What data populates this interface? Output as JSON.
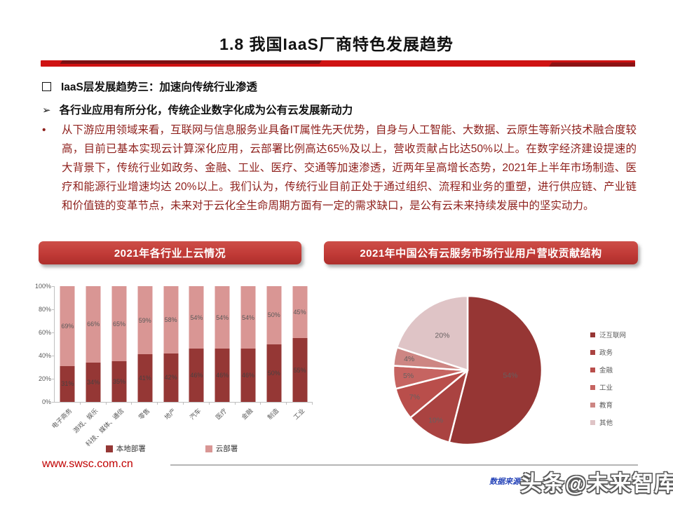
{
  "page": {
    "title": "1.8 我国IaaS厂商特色发展趋势",
    "section_heading": "IaaS层发展趋势三：加速向传统行业渗透",
    "sub_heading": "各行业应用有所分化，传统企业数字化成为公有云发展新动力",
    "bullet_glyph": "•",
    "arrow_glyph": "➢",
    "paragraph": "从下游应用领域来看，互联网与信息服务业具备IT属性先天优势，自身与人工智能、大数据、云原生等新兴技术融合度较高，目前已基本实现云计算深化应用，云部署比例高达65%及以上，营收贡献占比达50%以上。在数字经济建设提速的大背景下，传统行业如政务、金融、工业、医疗、交通等加速渗透，近两年呈高增长态势，2021年上半年市场制造、医疗和能源行业增速均达 20%以上。我们认为，传统行业目前正处于通过组织、流程和业务的重塑，进行供应链、产业链和价值链的变革节点，未来对于云化全生命周期方面有一定的需求缺口，是公有云未来持续发展中的坚实动力。"
  },
  "accent_colors": {
    "divider_red": "#cf1212",
    "banner_red": "#c13a36",
    "dark_series": "#953735",
    "light_series": "#D99694"
  },
  "chart_data": [
    {
      "type": "bar",
      "stacked": true,
      "percent": true,
      "title": "2021年各行业上云情况",
      "categories": [
        "电子商务",
        "游戏、娱乐",
        "科技、媒体、通信",
        "零售",
        "地产",
        "汽车",
        "医疗",
        "金融",
        "制造",
        "工业"
      ],
      "series": [
        {
          "name": "本地部署",
          "color": "#953735",
          "values": [
            31,
            34,
            35,
            41,
            42,
            46,
            46,
            46,
            50,
            55
          ]
        },
        {
          "name": "云部署",
          "color": "#D99694",
          "values": [
            69,
            66,
            65,
            59,
            58,
            54,
            54,
            54,
            50,
            45
          ]
        }
      ],
      "ylabel": "",
      "ylim": [
        0,
        100
      ],
      "yticks": [
        "0%",
        "20%",
        "40%",
        "60%",
        "80%",
        "100%"
      ],
      "grid": false,
      "legend_position": "bottom"
    },
    {
      "type": "pie",
      "title": "2021年中国公有云服务市场行业用户营收贡献结构",
      "labels": [
        "泛互联网",
        "政务",
        "金融",
        "工业",
        "教育",
        "其他"
      ],
      "values": [
        54,
        10,
        7,
        5,
        4,
        20
      ],
      "colors": [
        "#963634",
        "#AA4341",
        "#B94E4B",
        "#C66461",
        "#CD8683",
        "#DFC4C6"
      ],
      "start_angle_deg": 0,
      "direction": "clockwise",
      "legend_position": "right"
    }
  ],
  "footer": {
    "website": "www.swsc.com.cn",
    "source_label": "数据来源：",
    "watermark": "头条@未来智库"
  }
}
